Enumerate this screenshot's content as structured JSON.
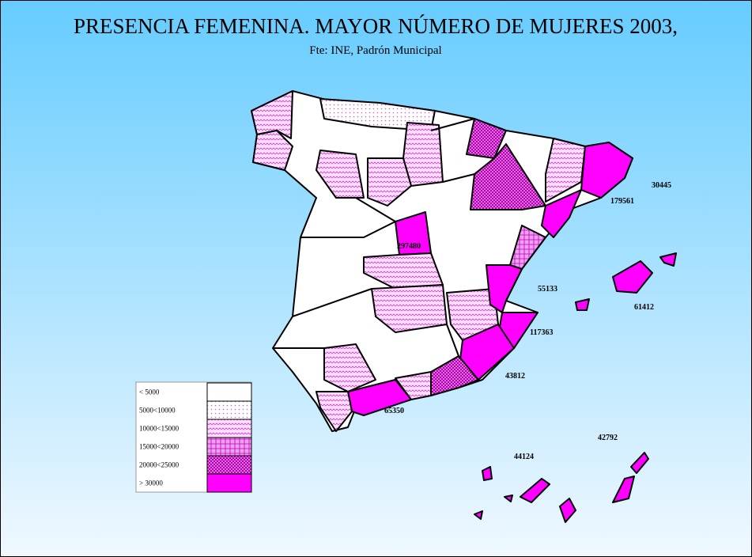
{
  "header": {
    "title": "PRESENCIA FEMENINA. MAYOR NÚMERO DE MUJERES 2003,",
    "subtitle": "Fte: INE, Padrón Municipal"
  },
  "legend": [
    "< 5000",
    "5000<10000",
    "10000<15000",
    "15000<20000",
    "20000<25000",
    "> 30000"
  ],
  "labels": [
    30445,
    179561,
    297480,
    55133,
    61412,
    117363,
    43812,
    65350,
    44124,
    42792
  ]
}
